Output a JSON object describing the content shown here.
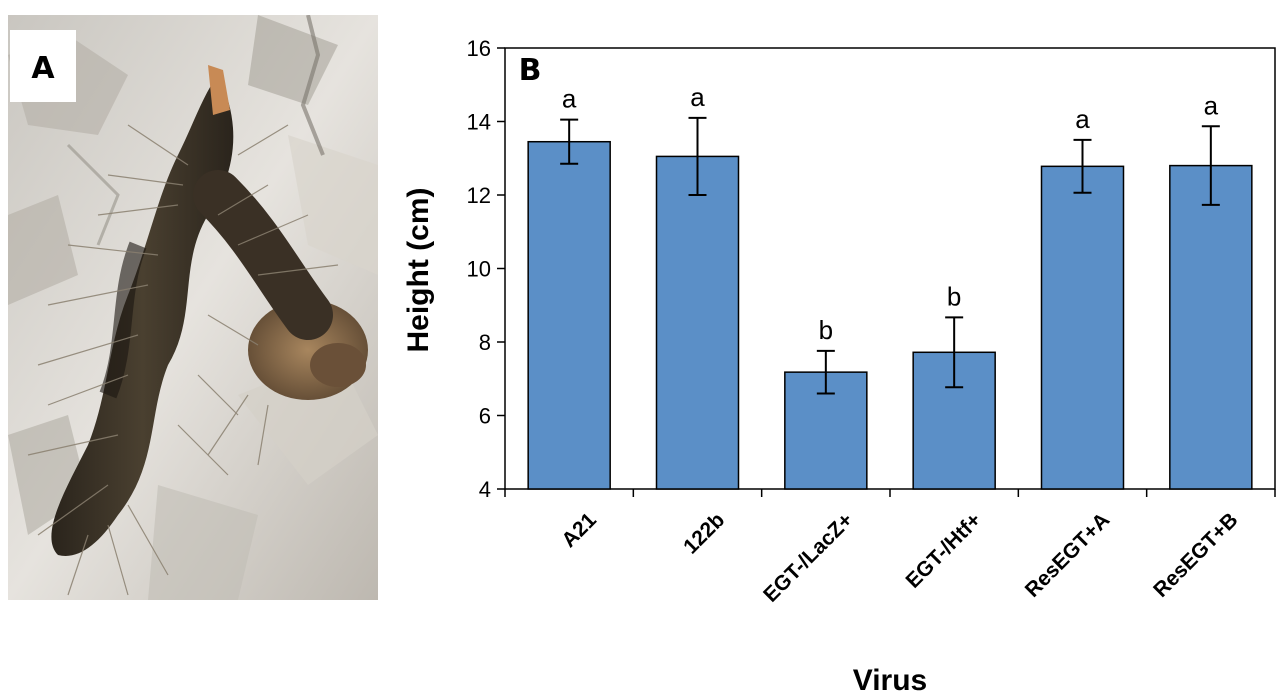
{
  "panel_a": {
    "letter": "A"
  },
  "chart_data": {
    "type": "bar",
    "panel_letter": "B",
    "categories": [
      "A21",
      "122b",
      "EGT-/LacZ+",
      "EGT-/Htf+",
      "ResEGT+A",
      "ResEGT+B"
    ],
    "values": [
      13.45,
      13.05,
      7.18,
      7.72,
      12.78,
      12.8
    ],
    "errors": [
      0.6,
      1.05,
      0.58,
      0.95,
      0.72,
      1.07
    ],
    "significance": [
      "a",
      "a",
      "b",
      "b",
      "a",
      "a"
    ],
    "xlabel": "Virus",
    "ylabel": "Height (cm)",
    "ylim": [
      4,
      16
    ],
    "yticks": [
      4,
      6,
      8,
      10,
      12,
      14,
      16
    ],
    "grid": false,
    "bar_color": "#5b8fc7",
    "bar_edge_color": "#000000"
  }
}
